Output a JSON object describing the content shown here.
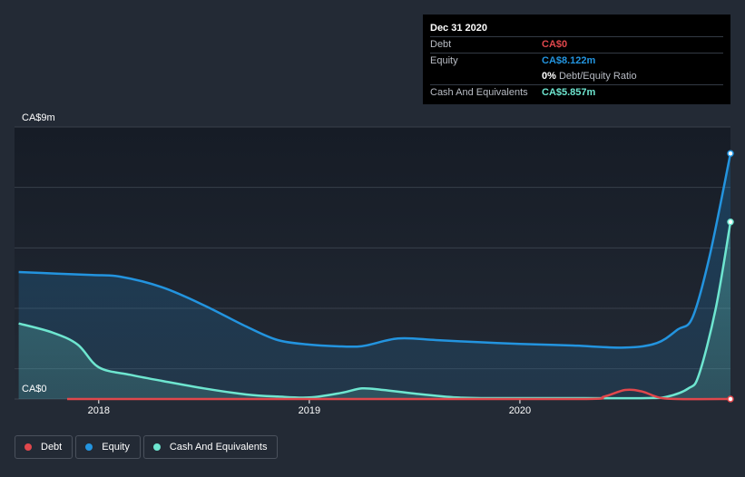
{
  "colors": {
    "debt": "#e0474c",
    "equity": "#2394df",
    "cash": "#6ee6d0",
    "grid": "#39404b",
    "plot_bg_top": "#161c26",
    "plot_bg_bottom": "#232a35"
  },
  "tooltip": {
    "date": "Dec 31 2020",
    "debt_label": "Debt",
    "debt_value": "CA$0",
    "equity_label": "Equity",
    "equity_value": "CA$8.122m",
    "ratio_value": "0%",
    "ratio_label": "Debt/Equity Ratio",
    "cash_label": "Cash And Equivalents",
    "cash_value": "CA$5.857m"
  },
  "legend": {
    "debt": "Debt",
    "equity": "Equity",
    "cash": "Cash And Equivalents"
  },
  "chart_data": {
    "type": "area",
    "title": "",
    "xlabel": "",
    "ylabel": "",
    "y_top_label": "CA$9m",
    "y_bottom_label": "CA$0",
    "ylim": [
      0,
      9
    ],
    "xlim": [
      2017.6,
      2021.0
    ],
    "x_ticks": [
      2018,
      2019,
      2020
    ],
    "x_tick_labels": [
      "2018",
      "2019",
      "2020"
    ],
    "series": [
      {
        "name": "Equity",
        "color": "#2394df",
        "points": [
          [
            2017.62,
            4.2
          ],
          [
            2017.8,
            4.15
          ],
          [
            2017.97,
            4.1
          ],
          [
            2018.1,
            4.05
          ],
          [
            2018.3,
            3.7
          ],
          [
            2018.5,
            3.1
          ],
          [
            2018.7,
            2.4
          ],
          [
            2018.85,
            1.95
          ],
          [
            2019.0,
            1.8
          ],
          [
            2019.12,
            1.75
          ],
          [
            2019.25,
            1.75
          ],
          [
            2019.42,
            2.0
          ],
          [
            2019.6,
            1.95
          ],
          [
            2019.8,
            1.88
          ],
          [
            2020.0,
            1.82
          ],
          [
            2020.25,
            1.77
          ],
          [
            2020.5,
            1.7
          ],
          [
            2020.65,
            1.85
          ],
          [
            2020.75,
            2.3
          ],
          [
            2020.82,
            2.7
          ],
          [
            2020.9,
            4.7
          ],
          [
            2021.0,
            8.122
          ]
        ]
      },
      {
        "name": "Cash And Equivalents",
        "color": "#6ee6d0",
        "points": [
          [
            2017.62,
            2.5
          ],
          [
            2017.78,
            2.2
          ],
          [
            2017.9,
            1.8
          ],
          [
            2018.0,
            1.05
          ],
          [
            2018.15,
            0.8
          ],
          [
            2018.3,
            0.6
          ],
          [
            2018.5,
            0.35
          ],
          [
            2018.7,
            0.15
          ],
          [
            2018.85,
            0.08
          ],
          [
            2019.0,
            0.05
          ],
          [
            2019.15,
            0.2
          ],
          [
            2019.25,
            0.35
          ],
          [
            2019.35,
            0.3
          ],
          [
            2019.5,
            0.18
          ],
          [
            2019.7,
            0.05
          ],
          [
            2019.85,
            0.03
          ],
          [
            2020.0,
            0.03
          ],
          [
            2020.3,
            0.03
          ],
          [
            2020.6,
            0.03
          ],
          [
            2020.7,
            0.08
          ],
          [
            2020.8,
            0.35
          ],
          [
            2020.85,
            0.8
          ],
          [
            2020.93,
            3.0
          ],
          [
            2021.0,
            5.857
          ]
        ]
      },
      {
        "name": "Debt",
        "color": "#e0474c",
        "points": [
          [
            2017.85,
            0.0
          ],
          [
            2018.5,
            0.0
          ],
          [
            2019.5,
            0.0
          ],
          [
            2020.3,
            0.0
          ],
          [
            2020.4,
            0.08
          ],
          [
            2020.5,
            0.3
          ],
          [
            2020.58,
            0.25
          ],
          [
            2020.66,
            0.05
          ],
          [
            2020.75,
            0.0
          ],
          [
            2021.0,
            0.0
          ]
        ]
      }
    ]
  }
}
